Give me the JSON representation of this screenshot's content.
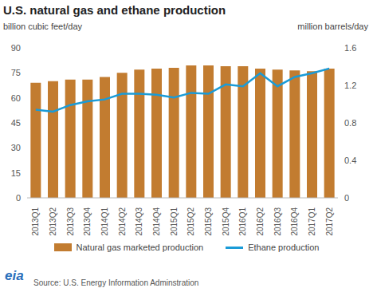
{
  "chart_data": {
    "type": "bar",
    "title": "U.S. natural gas and ethane production",
    "y_label": "billion cubic feet/day",
    "y2_label": "million barrels/day",
    "source": "Source: U.S. Energy Information Adminstration",
    "logo": "eia",
    "categories": [
      "2013Q1",
      "2013Q2",
      "2013Q3",
      "2013Q4",
      "2014Q1",
      "2014Q2",
      "2014Q3",
      "2014Q4",
      "2015Q1",
      "2015Q2",
      "2015Q3",
      "2015Q4",
      "2016Q1",
      "2016Q2",
      "2016Q3",
      "2016Q4",
      "2017Q1",
      "2017Q2"
    ],
    "series": [
      {
        "name": "Natural gas marketed production",
        "type": "bar",
        "color": "#c27c30",
        "values": [
          69,
          70,
          71,
          71,
          72.5,
          75,
          77,
          77.5,
          78,
          79.5,
          79.5,
          79,
          79,
          77.5,
          77,
          76.5,
          76,
          77.5
        ]
      },
      {
        "name": "Ethane production",
        "type": "line",
        "axis": "y2",
        "color": "#1a9bd7",
        "values": [
          0.94,
          0.92,
          0.99,
          1.03,
          1.05,
          1.11,
          1.11,
          1.1,
          1.07,
          1.12,
          1.11,
          1.21,
          1.19,
          1.33,
          1.19,
          1.29,
          1.33,
          1.38
        ]
      }
    ],
    "ylim": [
      0,
      90
    ],
    "yticks": [
      0,
      15,
      30,
      45,
      60,
      75,
      90
    ],
    "y2lim": [
      0,
      1.6
    ],
    "y2ticks": [
      0,
      0.4,
      0.8,
      1.2,
      1.6
    ],
    "grid": false,
    "legend": "bottom"
  }
}
